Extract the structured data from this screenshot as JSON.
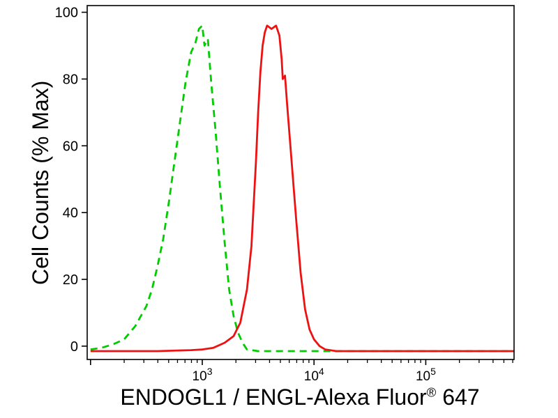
{
  "figure": {
    "background": "#ffffff",
    "ylabel": "Cell Counts (% Max)",
    "xlabel": {
      "main": "ENDOGL1 / ENGL-Alexa Fluor",
      "sup": "®",
      "suffix": " 647"
    }
  },
  "chart_data": {
    "type": "line",
    "title": "",
    "xlabel": "ENDOGL1 / ENGL-Alexa Fluor® 647",
    "ylabel": "Cell Counts (% Max)",
    "x_scale": "log10",
    "x_range_log10": [
      1.97,
      5.79
    ],
    "ylim": [
      -4,
      102
    ],
    "y_ticks": [
      0,
      20,
      40,
      60,
      80,
      100
    ],
    "x_major_tick_exponents": [
      2,
      3,
      4,
      5
    ],
    "x_labeled_exponents": [
      3,
      4,
      5
    ],
    "x_tick_base": "10",
    "axis_color": "#000000",
    "grid": false,
    "legend": "none",
    "series": [
      {
        "name": "green-dashed-control",
        "style": "dashed",
        "color": "#00cc00",
        "points_x_log10": [
          2.0,
          2.1,
          2.2,
          2.3,
          2.4,
          2.5,
          2.55,
          2.6,
          2.65,
          2.7,
          2.75,
          2.8,
          2.85,
          2.9,
          2.94,
          2.97,
          3.0,
          3.02,
          3.05,
          3.08,
          3.12,
          3.16,
          3.2,
          3.24,
          3.28,
          3.32,
          3.36,
          3.4,
          3.5,
          4.0,
          5.0,
          5.79
        ],
        "points_y": [
          -1,
          -0.5,
          0.5,
          2,
          6,
          12,
          17,
          24,
          32,
          43,
          55,
          67,
          79,
          88,
          91,
          95,
          96,
          90,
          92,
          79,
          64,
          47,
          31,
          17,
          9,
          4,
          1,
          -1,
          -1.5,
          -1.5,
          -1.5,
          -1.5
        ]
      },
      {
        "name": "red-solid-stained",
        "style": "solid",
        "color": "#ee1111",
        "points_x_log10": [
          2.0,
          2.6,
          2.9,
          3.0,
          3.1,
          3.2,
          3.28,
          3.34,
          3.4,
          3.44,
          3.48,
          3.5,
          3.52,
          3.54,
          3.56,
          3.58,
          3.62,
          3.66,
          3.69,
          3.71,
          3.72,
          3.74,
          3.76,
          3.8,
          3.84,
          3.88,
          3.92,
          3.96,
          4.0,
          4.05,
          4.1,
          4.2,
          5.0,
          5.79
        ],
        "points_y": [
          -1.5,
          -1.5,
          -1.2,
          -1,
          -0.5,
          1,
          3,
          7,
          17,
          30,
          55,
          70,
          82,
          90,
          94,
          96,
          95,
          96,
          93,
          86,
          80,
          81,
          72,
          55,
          38,
          22,
          11,
          5,
          2,
          0,
          -1,
          -1.5,
          -1.5,
          -1.5
        ]
      }
    ]
  }
}
